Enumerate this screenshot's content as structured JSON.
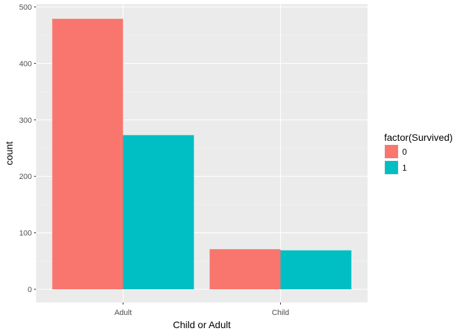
{
  "chart_data": {
    "type": "bar",
    "title": "",
    "xlabel": "Child or Adult",
    "ylabel": "count",
    "categories": [
      "Adult",
      "Child"
    ],
    "series": [
      {
        "name": "0",
        "values": [
          479,
          71
        ]
      },
      {
        "name": "1",
        "values": [
          273,
          69
        ]
      }
    ],
    "ylim": [
      0,
      500
    ],
    "yticks": [
      0,
      100,
      200,
      300,
      400,
      500
    ],
    "legend": {
      "title": "factor(Survived)",
      "placement": "right"
    },
    "colors": [
      "#F8766D",
      "#00BFC4"
    ],
    "grid": true
  }
}
